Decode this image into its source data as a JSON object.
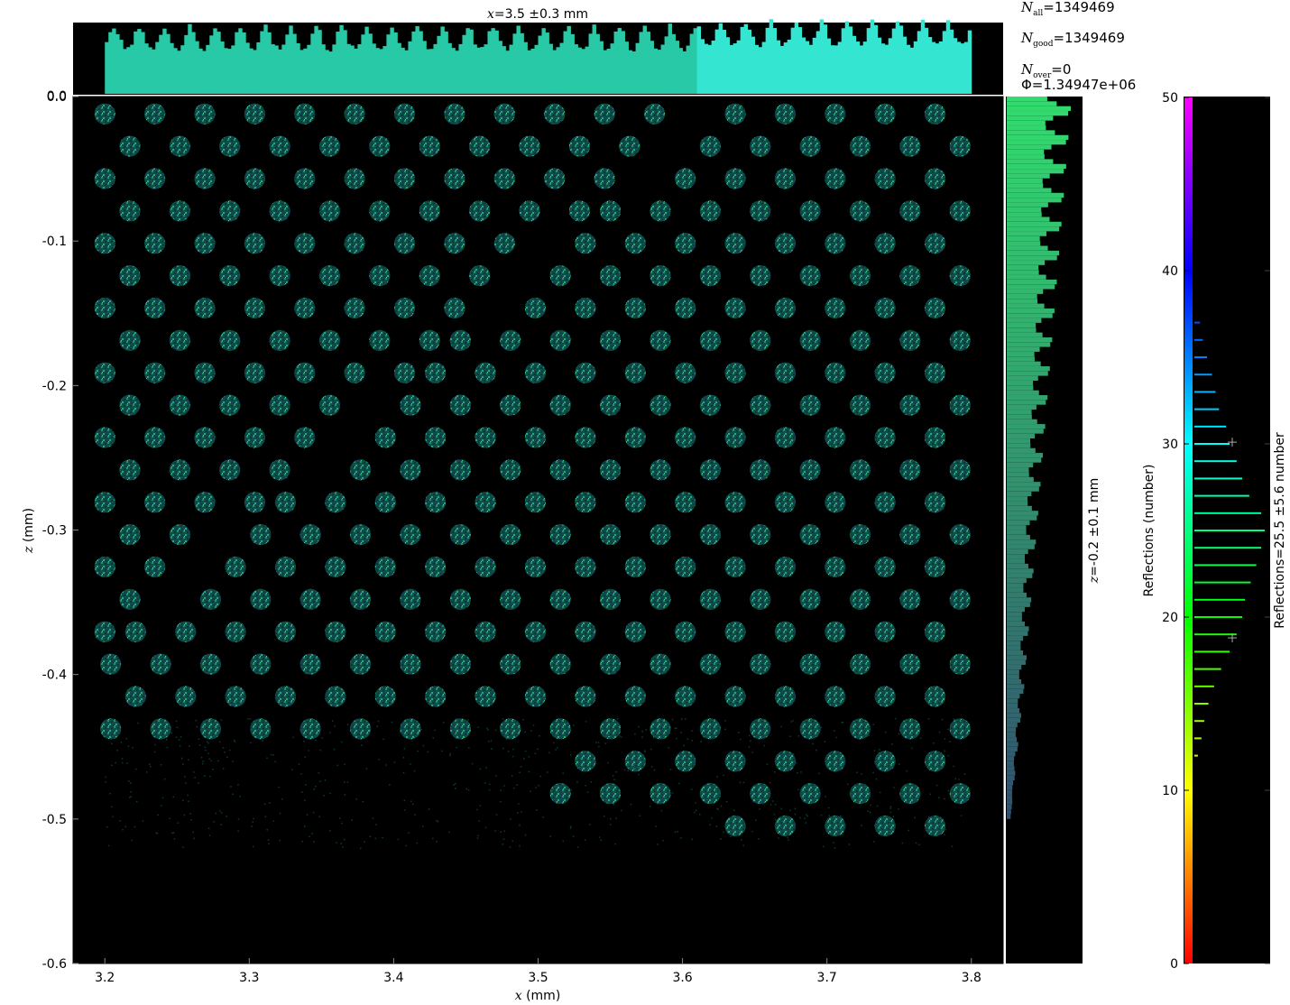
{
  "chart_data": [
    {
      "name": "main_map",
      "type": "heatmap",
      "xlabel_var": "x",
      "xlabel_unit": "(mm)",
      "ylabel_var": "z",
      "ylabel_unit": "(mm)",
      "xlim": [
        3.178,
        3.822
      ],
      "ylim": [
        -0.6,
        0.0
      ],
      "xticks": [
        "3.2",
        "3.3",
        "3.4",
        "3.5",
        "3.6",
        "3.7",
        "3.8"
      ],
      "yticks": [
        "0.0",
        "-0.1",
        "-0.2",
        "-0.3",
        "-0.4",
        "-0.5",
        "-0.6"
      ],
      "spot_pitch_x_mm": 0.0173,
      "spot_pitch_z_mm": 0.0224,
      "spot_diameter_mm": 0.0145,
      "colormap": "hue: reflections 0 (red) to 50 (magenta)",
      "background": "#000000"
    },
    {
      "name": "x_profile",
      "type": "bar",
      "title": "x=3.5 ±0.3 mm",
      "title_parts": {
        "var": "x",
        "value": "=3.5 ±0.3 mm"
      },
      "ytick": "0.0",
      "x_range_mm": [
        3.2,
        3.8
      ],
      "color_top": "#2ee8c8",
      "color_base": "#1a8f6e"
    },
    {
      "name": "z_profile",
      "type": "bar",
      "orientation": "horizontal",
      "label": "z=-0.2 ±0.1 mm",
      "label_parts": {
        "var": "z",
        "value": "=-0.2 ±0.1 mm"
      },
      "z_range_mm": [
        -0.5,
        0.0
      ],
      "color": "#3ddc77"
    },
    {
      "name": "reflections_histogram",
      "type": "bar",
      "orientation": "horizontal",
      "ylabel": "Reflections (number)",
      "ylim": [
        0,
        50
      ],
      "yticks": [
        "0",
        "10",
        "20",
        "30",
        "40",
        "50"
      ],
      "side_label": "Reflections=25.5 ±5.6 number",
      "colormap_stops": [
        "#ff0000",
        "#ffff00",
        "#00ff00",
        "#00ffff",
        "#0000ff",
        "#ff00ff"
      ],
      "categories": [
        12,
        13,
        14,
        15,
        16,
        17,
        18,
        19,
        20,
        21,
        22,
        23,
        24,
        25,
        26,
        27,
        28,
        29,
        30,
        31,
        32,
        33,
        34,
        35,
        36,
        37
      ],
      "values": [
        0.05,
        0.1,
        0.14,
        0.2,
        0.28,
        0.38,
        0.5,
        0.6,
        0.68,
        0.72,
        0.8,
        0.88,
        0.95,
        1.0,
        0.95,
        0.78,
        0.68,
        0.6,
        0.5,
        0.45,
        0.35,
        0.3,
        0.25,
        0.18,
        0.12,
        0.08
      ],
      "markers": [
        18.8,
        30.1
      ]
    }
  ],
  "stats": {
    "n_all_var": "N",
    "n_all_sub": "all",
    "n_all_value": "=1349469",
    "n_good_var": "N",
    "n_good_sub": "good",
    "n_good_value": "=1349469",
    "n_over_var": "N",
    "n_over_sub": "over",
    "n_over_value": "=0",
    "flux": "Φ=1.34947e+06"
  }
}
